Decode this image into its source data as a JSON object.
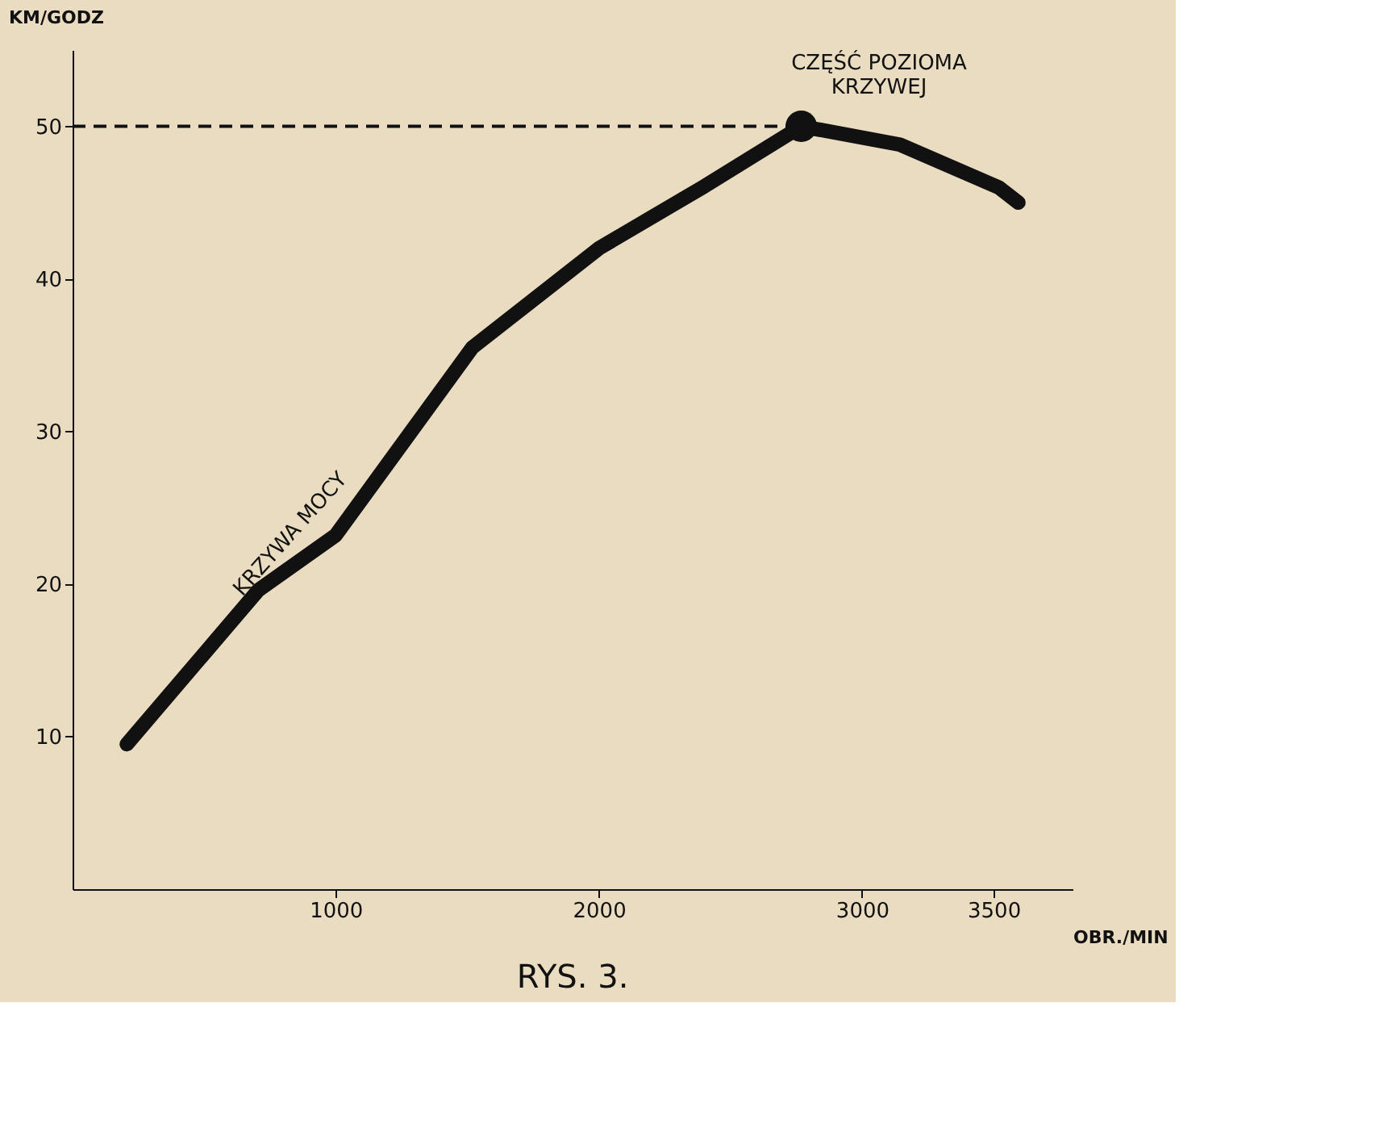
{
  "chart_data": {
    "type": "line",
    "title": "RYS. 3.",
    "xlabel": "OBR./MIN",
    "ylabel": "KM/GODZ",
    "series": [
      {
        "color": "#111111",
        "marker": "none",
        "x": [
          206,
          706,
          1000,
          1519,
          2000,
          2394,
          2769,
          3144,
          3519,
          3594
        ],
        "values": [
          9.5,
          19.6,
          23.2,
          35.5,
          42,
          46,
          50,
          48.8,
          46,
          45
        ]
      },
      {
        "type": "scatter",
        "color": "#111111",
        "marker": "circle",
        "x": [
          2769
        ],
        "values": [
          50
        ]
      }
    ],
    "annotations": [
      "KRZYWA MOCY",
      "CZĘŚĆ POZIOMA KRZYWEJ"
    ],
    "ref_lines": [
      {
        "axis": "y",
        "value": 50,
        "line_style": "dashed",
        "color": "#111111"
      }
    ],
    "xlim": [
      0,
      3800
    ],
    "xticks": [
      1000,
      2000,
      3000,
      3500
    ],
    "ylim": [
      0,
      55
    ],
    "yticks": [
      10,
      20,
      30,
      40,
      50
    ],
    "grid": false
  }
}
